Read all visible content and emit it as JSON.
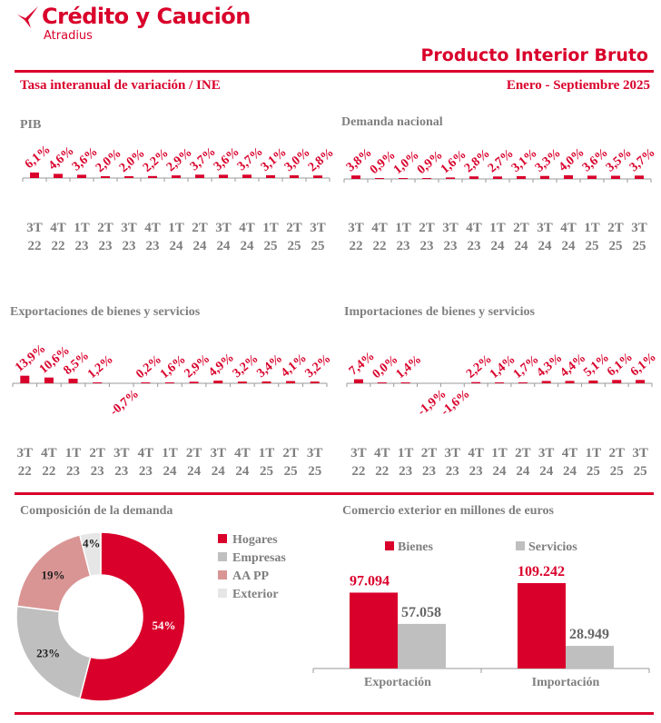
{
  "header": {
    "brand": "Crédito y Caución",
    "brand_sub": "Atradius",
    "title": "Producto Interior Bruto",
    "subtitle_left": "Tasa interanual de variación / INE",
    "subtitle_right": "Enero - Septiembre 2025",
    "accent": "#d9002b"
  },
  "quarters": [
    [
      "3T",
      "22"
    ],
    [
      "4T",
      "22"
    ],
    [
      "1T",
      "23"
    ],
    [
      "2T",
      "23"
    ],
    [
      "3T",
      "23"
    ],
    [
      "4T",
      "23"
    ],
    [
      "1T",
      "24"
    ],
    [
      "2T",
      "24"
    ],
    [
      "3T",
      "24"
    ],
    [
      "4T",
      "24"
    ],
    [
      "1T",
      "25"
    ],
    [
      "2T",
      "25"
    ],
    [
      "3T",
      "25"
    ]
  ],
  "chart_data": [
    {
      "type": "bar",
      "title": "PIB",
      "unit": "%",
      "values": [
        6.1,
        4.6,
        3.6,
        2.0,
        2.0,
        2.2,
        2.9,
        3.7,
        3.6,
        3.7,
        3.1,
        3.0,
        2.8
      ],
      "labels": [
        "6,1%",
        "4,6%",
        "3,6%",
        "2,0%",
        "2,0%",
        "2,2%",
        "2,9%",
        "3,7%",
        "3,6%",
        "3,7%",
        "3,1%",
        "3,0%",
        "2,8%"
      ],
      "color": "#d9002b"
    },
    {
      "type": "bar",
      "title": "Demanda nacional",
      "unit": "%",
      "values": [
        3.8,
        0.9,
        1.0,
        0.9,
        1.6,
        2.8,
        2.7,
        3.1,
        3.3,
        4.0,
        3.6,
        3.5,
        3.7
      ],
      "labels": [
        "3,8%",
        "0,9%",
        "1,0%",
        "0,9%",
        "1,6%",
        "2,8%",
        "2,7%",
        "3,1%",
        "3,3%",
        "4,0%",
        "3,6%",
        "3,5%",
        "3,7%"
      ],
      "color": "#d9002b"
    },
    {
      "type": "bar",
      "title": "Exportaciones de bienes y servicios",
      "unit": "%",
      "values": [
        13.9,
        10.6,
        8.5,
        1.2,
        -0.7,
        0.2,
        1.6,
        2.9,
        4.9,
        3.2,
        3.4,
        4.1,
        3.2
      ],
      "labels": [
        "13,9%",
        "10,6%",
        "8,5%",
        "1,2%",
        "-0,7%",
        "0,2%",
        "1,6%",
        "2,9%",
        "4,9%",
        "3,2%",
        "3,4%",
        "4,1%",
        "3,2%"
      ],
      "color": "#d9002b"
    },
    {
      "type": "bar",
      "title": "Importaciones de bienes y servicios",
      "unit": "%",
      "values": [
        7.4,
        0.0,
        1.4,
        -1.9,
        -1.6,
        2.2,
        1.4,
        1.7,
        4.3,
        4.4,
        5.1,
        6.1,
        6.1
      ],
      "labels": [
        "7,4%",
        "0,0%",
        "1,4%",
        "-1,9%",
        "-1,6%",
        "2,2%",
        "1,4%",
        "1,7%",
        "4,3%",
        "4,4%",
        "5,1%",
        "6,1%",
        "6,1%"
      ],
      "color": "#d9002b"
    },
    {
      "type": "pie",
      "title": "Composición de la demanda",
      "legend": "right",
      "slices": [
        {
          "name": "Hogares",
          "value": 54,
          "label": "54%",
          "color": "#d9002b"
        },
        {
          "name": "Empresas",
          "value": 23,
          "label": "23%",
          "color": "#bfbfbf"
        },
        {
          "name": "AA PP",
          "value": 19,
          "label": "19%",
          "color": "#d99594"
        },
        {
          "name": "Exterior",
          "value": 4,
          "label": "4%",
          "color": "#e6e6e6"
        }
      ]
    },
    {
      "type": "bar",
      "title": "Comercio exterior en millones de euros",
      "legend": "top",
      "categories": [
        "Exportación",
        "Importación"
      ],
      "series": [
        {
          "name": "Bienes",
          "values": [
            97094,
            109242
          ],
          "labels": [
            "97.094",
            "109.242"
          ],
          "color": "#d9002b"
        },
        {
          "name": "Servicios",
          "values": [
            57058,
            28949
          ],
          "labels": [
            "57.058",
            "28.949"
          ],
          "color": "#bfbfbf"
        }
      ]
    }
  ]
}
